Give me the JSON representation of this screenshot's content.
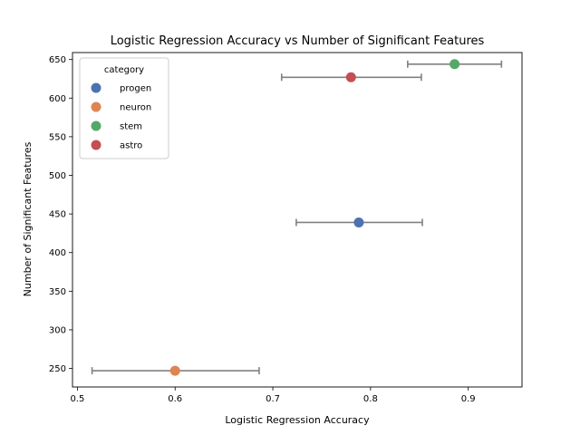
{
  "chart_data": {
    "type": "scatter",
    "title": "Logistic Regression Accuracy vs Number of Significant Features",
    "xlabel": "Logistic Regression Accuracy",
    "ylabel": "Number of Significant Features",
    "xlim": [
      0.495,
      0.955
    ],
    "ylim": [
      226,
      659
    ],
    "xticks": [
      0.5,
      0.6,
      0.7,
      0.8,
      0.9
    ],
    "xtick_labels": [
      "0.5",
      "0.6",
      "0.7",
      "0.8",
      "0.9"
    ],
    "yticks": [
      250,
      300,
      350,
      400,
      450,
      500,
      550,
      600,
      650
    ],
    "ytick_labels": [
      "250",
      "300",
      "350",
      "400",
      "450",
      "500",
      "550",
      "600",
      "650"
    ],
    "grid": false,
    "legend": {
      "title": "category",
      "position": "upper-left"
    },
    "series": [
      {
        "name": "progen",
        "color": "#4c72b0",
        "x": 0.788,
        "y": 439,
        "xerr": [
          0.724,
          0.853
        ]
      },
      {
        "name": "neuron",
        "color": "#dd8452",
        "x": 0.6,
        "y": 247,
        "xerr": [
          0.515,
          0.686
        ]
      },
      {
        "name": "stem",
        "color": "#55a868",
        "x": 0.886,
        "y": 644,
        "xerr": [
          0.838,
          0.934
        ]
      },
      {
        "name": "astro",
        "color": "#c44e52",
        "x": 0.78,
        "y": 627,
        "xerr": [
          0.709,
          0.852
        ]
      }
    ],
    "errorbar_color": "#808080"
  }
}
